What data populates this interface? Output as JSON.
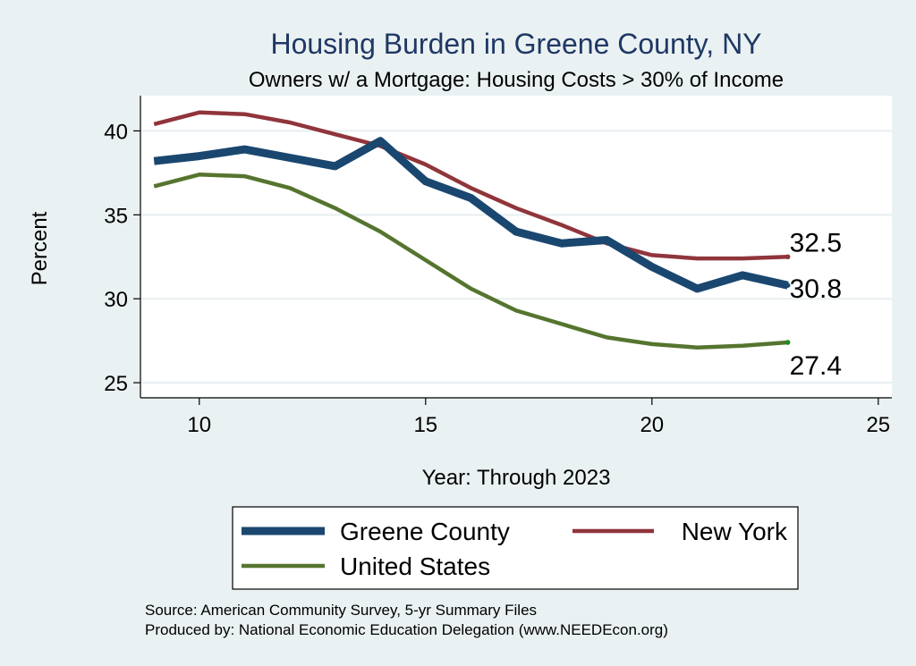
{
  "chart_data": {
    "type": "line",
    "title": "Housing Burden in Greene County, NY",
    "subtitle": "Owners w/ a Mortgage: Housing Costs > 30% of Income",
    "xlabel": "Year: Through 2023",
    "ylabel": "Percent",
    "xlim": [
      8.7,
      25.3
    ],
    "ylim": [
      24.1,
      42.1
    ],
    "xticks": [
      10,
      15,
      20,
      25
    ],
    "yticks": [
      25,
      30,
      35,
      40
    ],
    "grid": true,
    "x": [
      9,
      10,
      11,
      12,
      13,
      14,
      15,
      16,
      17,
      18,
      19,
      20,
      21,
      22,
      23
    ],
    "series": [
      {
        "name": "Greene County",
        "color": "#1a476f",
        "values": [
          38.2,
          38.5,
          38.9,
          38.4,
          37.9,
          39.4,
          37.0,
          36.0,
          34.0,
          33.3,
          33.5,
          31.9,
          30.6,
          31.4,
          30.8
        ]
      },
      {
        "name": "New York",
        "color": "#90353b",
        "values": [
          40.4,
          41.1,
          41.0,
          40.5,
          39.8,
          39.1,
          38.0,
          36.6,
          35.4,
          34.4,
          33.3,
          32.6,
          32.4,
          32.4,
          32.5
        ]
      },
      {
        "name": "United States",
        "color": "#55752f",
        "values": [
          36.7,
          37.4,
          37.3,
          36.6,
          35.4,
          34.0,
          32.3,
          30.6,
          29.3,
          28.5,
          27.7,
          27.3,
          27.1,
          27.2,
          27.4
        ]
      }
    ],
    "end_labels": [
      "30.8",
      "32.5",
      "27.4"
    ],
    "legend_position": "bottom",
    "source_lines": [
      "Source: American Community Survey, 5-yr Summary Files",
      "Produced by: National Economic Education Delegation (www.NEEDEcon.org)"
    ]
  }
}
